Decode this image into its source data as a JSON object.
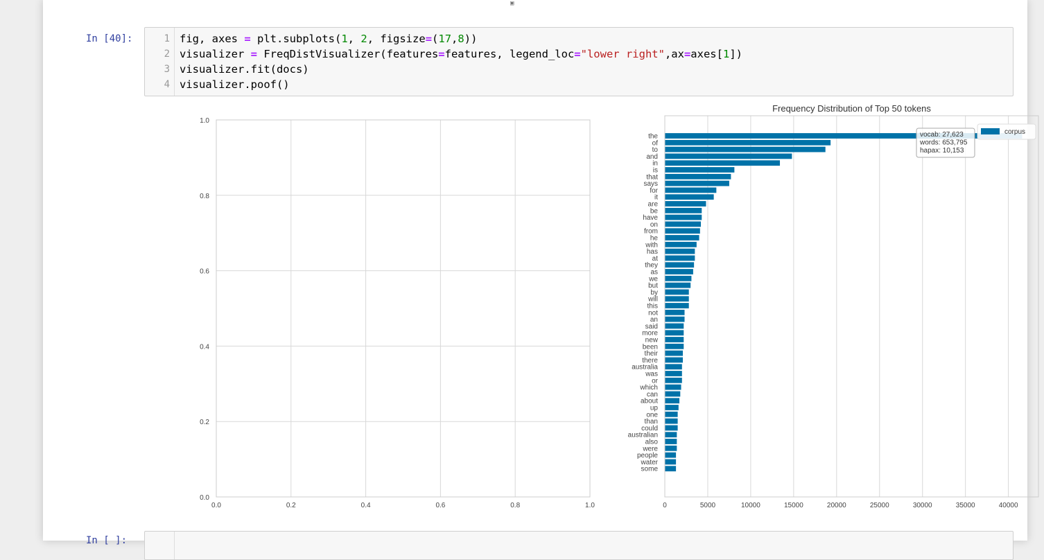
{
  "notebook": {
    "top_glyphs": [
      "-",
      "▣"
    ],
    "cell40": {
      "prompt": "In [40]:",
      "line_numbers": [
        "1",
        "2",
        "3",
        "4"
      ],
      "lines": [
        [
          {
            "t": "fig, axes "
          },
          {
            "t": "=",
            "c": "kw-op"
          },
          {
            "t": " plt.subplots("
          },
          {
            "t": "1",
            "c": "num"
          },
          {
            "t": ", "
          },
          {
            "t": "2",
            "c": "num"
          },
          {
            "t": ", figsize"
          },
          {
            "t": "=",
            "c": "kw-op"
          },
          {
            "t": "("
          },
          {
            "t": "17",
            "c": "num"
          },
          {
            "t": ","
          },
          {
            "t": "8",
            "c": "num"
          },
          {
            "t": "))"
          }
        ],
        [
          {
            "t": "visualizer "
          },
          {
            "t": "=",
            "c": "kw-op"
          },
          {
            "t": " FreqDistVisualizer(features"
          },
          {
            "t": "=",
            "c": "kw-op"
          },
          {
            "t": "features, legend_loc"
          },
          {
            "t": "=",
            "c": "kw-op"
          },
          {
            "t": "\"lower right\"",
            "c": "str"
          },
          {
            "t": ",ax"
          },
          {
            "t": "=",
            "c": "kw-op"
          },
          {
            "t": "axes["
          },
          {
            "t": "1",
            "c": "num"
          },
          {
            "t": "])"
          }
        ],
        [
          {
            "t": "visualizer.fit(docs)"
          }
        ],
        [
          {
            "t": "visualizer.poof()"
          }
        ]
      ]
    },
    "next_cell": {
      "prompt": "In [ ]:"
    }
  },
  "chart_data": [
    {
      "type": "line",
      "title": "",
      "xlabel": "",
      "ylabel": "",
      "xlim": [
        0.0,
        1.0
      ],
      "ylim": [
        0.0,
        1.0
      ],
      "xticks": [
        "0.0",
        "0.2",
        "0.4",
        "0.6",
        "0.8",
        "1.0"
      ],
      "yticks": [
        "0.0",
        "0.2",
        "0.4",
        "0.6",
        "0.8",
        "1.0"
      ],
      "grid": true,
      "series": []
    },
    {
      "type": "bar",
      "orientation": "horizontal",
      "title": "Frequency Distribution of Top 50 tokens",
      "xlim": [
        0,
        43500
      ],
      "xticks": [
        "0",
        "5000",
        "10000",
        "15000",
        "20000",
        "25000",
        "30000",
        "35000",
        "40000"
      ],
      "grid": true,
      "bar_color": "#0072a8",
      "legend": {
        "placement": "top-right",
        "entries": [
          "corpus"
        ]
      },
      "annotation": [
        "vocab: 27,623",
        "words: 653,795",
        "hapax: 10,153"
      ],
      "categories": [
        "the",
        "of",
        "to",
        "and",
        "in",
        "is",
        "that",
        "says",
        "for",
        "it",
        "are",
        "be",
        "have",
        "on",
        "from",
        "he",
        "with",
        "has",
        "at",
        "they",
        "as",
        "we",
        "but",
        "by",
        "will",
        "this",
        "not",
        "an",
        "said",
        "more",
        "new",
        "been",
        "their",
        "there",
        "australia",
        "was",
        "or",
        "which",
        "can",
        "about",
        "up",
        "one",
        "than",
        "could",
        "australian",
        "also",
        "were",
        "people",
        "water",
        "some"
      ],
      "values": [
        41600,
        19300,
        18700,
        14800,
        13400,
        8100,
        7700,
        7500,
        6000,
        5700,
        4800,
        4300,
        4300,
        4200,
        4100,
        4000,
        3700,
        3500,
        3500,
        3400,
        3300,
        3100,
        3000,
        2800,
        2800,
        2800,
        2300,
        2300,
        2200,
        2200,
        2200,
        2200,
        2100,
        2100,
        2000,
        2000,
        2000,
        1900,
        1800,
        1700,
        1600,
        1500,
        1500,
        1500,
        1400,
        1400,
        1400,
        1300,
        1300,
        1300
      ]
    }
  ]
}
